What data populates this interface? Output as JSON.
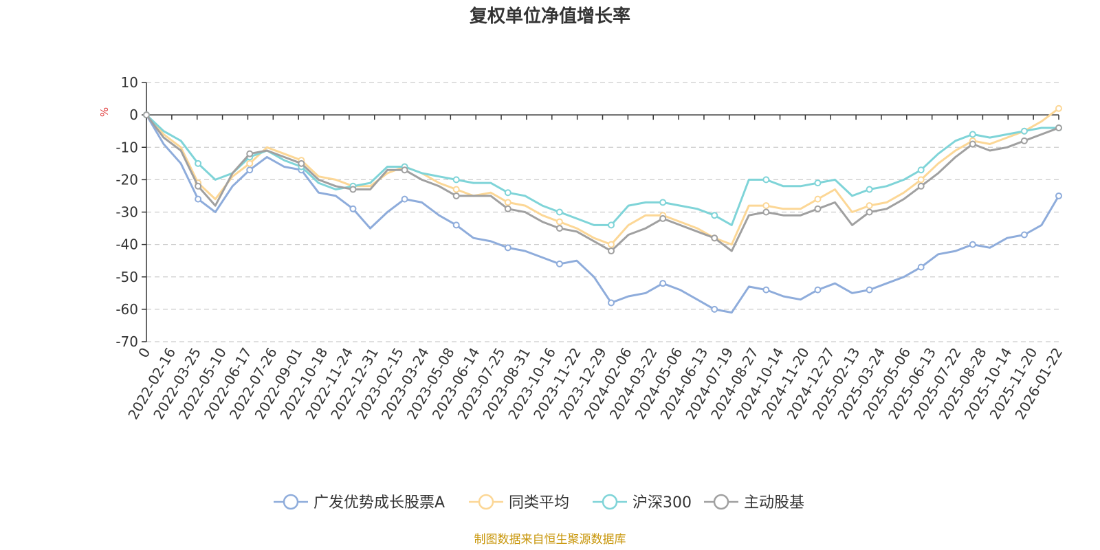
{
  "chart_data": {
    "type": "line",
    "title": "复权单位净值增长率",
    "y_unit_label": "%",
    "ylim": [
      -70,
      10
    ],
    "y_ticks": [
      10,
      0,
      -10,
      -20,
      -30,
      -40,
      -50,
      -60,
      -70
    ],
    "grid": true,
    "legend_position": "bottom-center",
    "x_tick_labels": [
      "0",
      "2022-02-16",
      "2022-03-25",
      "2022-05-10",
      "2022-06-17",
      "2022-07-26",
      "2022-09-01",
      "2022-10-18",
      "2022-11-24",
      "2022-12-31",
      "2023-02-15",
      "2023-03-24",
      "2023-05-08",
      "2023-06-14",
      "2023-07-25",
      "2023-08-31",
      "2023-10-16",
      "2023-11-22",
      "2023-12-29",
      "2024-02-06",
      "2024-03-22",
      "2024-05-06",
      "2024-06-13",
      "2024-07-19",
      "2024-08-27",
      "2024-10-14",
      "2024-11-20",
      "2024-12-27",
      "2025-02-13",
      "2025-03-24",
      "2025-05-06",
      "2025-06-13",
      "2025-07-22",
      "2025-08-28",
      "2025-10-14",
      "2025-11-20",
      "2026-01-22"
    ],
    "series": [
      {
        "name": "广发优势成长股票A",
        "color": "#8eacdb",
        "values": [
          0,
          -9,
          -15,
          -26,
          -30,
          -22,
          -17,
          -13,
          -16,
          -17,
          -24,
          -25,
          -29,
          -35,
          -30,
          -26,
          -27,
          -31,
          -34,
          -38,
          -39,
          -41,
          -42,
          -44,
          -46,
          -45,
          -50,
          -58,
          -56,
          -55,
          -52,
          -54,
          -57,
          -60,
          -61,
          -53,
          -54,
          -56,
          -57,
          -54,
          -52,
          -55,
          -54,
          -52,
          -50,
          -47,
          -43,
          -42,
          -40,
          -41,
          -38,
          -37,
          -34,
          -25
        ]
      },
      {
        "name": "同类平均",
        "color": "#fcd796",
        "values": [
          0,
          -6,
          -10,
          -21,
          -26,
          -19,
          -15,
          -10,
          -12,
          -14,
          -19,
          -20,
          -22,
          -22,
          -18,
          -16,
          -18,
          -21,
          -23,
          -25,
          -24,
          -27,
          -28,
          -31,
          -33,
          -35,
          -38,
          -40,
          -34,
          -31,
          -31,
          -33,
          -35,
          -38,
          -40,
          -28,
          -28,
          -29,
          -29,
          -26,
          -23,
          -30,
          -28,
          -27,
          -24,
          -20,
          -15,
          -11,
          -8,
          -9,
          -7,
          -5,
          -2,
          2
        ]
      },
      {
        "name": "沪深300",
        "color": "#7fd4d8",
        "values": [
          0,
          -5,
          -8,
          -15,
          -20,
          -18,
          -13,
          -11,
          -14,
          -16,
          -21,
          -23,
          -22,
          -21,
          -16,
          -16,
          -18,
          -19,
          -20,
          -21,
          -21,
          -24,
          -25,
          -28,
          -30,
          -32,
          -34,
          -34,
          -28,
          -27,
          -27,
          -28,
          -29,
          -31,
          -34,
          -20,
          -20,
          -22,
          -22,
          -21,
          -20,
          -25,
          -23,
          -22,
          -20,
          -17,
          -12,
          -8,
          -6,
          -7,
          -6,
          -5,
          -4,
          -4
        ]
      },
      {
        "name": "主动股基",
        "color": "#a0a0a0",
        "values": [
          0,
          -7,
          -11,
          -22,
          -28,
          -18,
          -12,
          -11,
          -13,
          -15,
          -20,
          -22,
          -23,
          -23,
          -17,
          -17,
          -20,
          -22,
          -25,
          -25,
          -25,
          -29,
          -30,
          -33,
          -35,
          -36,
          -39,
          -42,
          -37,
          -35,
          -32,
          -34,
          -36,
          -38,
          -42,
          -31,
          -30,
          -31,
          -31,
          -29,
          -27,
          -34,
          -30,
          -29,
          -26,
          -22,
          -18,
          -13,
          -9,
          -11,
          -10,
          -8,
          -6,
          -4
        ]
      }
    ]
  },
  "source_text": "制图数据来自恒生聚源数据库"
}
